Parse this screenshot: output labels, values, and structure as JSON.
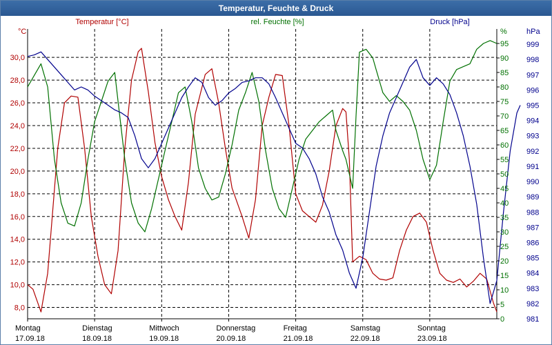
{
  "window": {
    "title": "Temperatur, Feuchte & Druck"
  },
  "colors": {
    "temperature": "#b00000",
    "humidity": "#007000",
    "pressure": "#00008c",
    "grid": "#000000",
    "title_bg": "#2f609b"
  },
  "chart_data": {
    "type": "line",
    "title": "Temperatur, Feuchte & Druck",
    "x_range": [
      0,
      7
    ],
    "days": [
      {
        "weekday": "Montag",
        "date": "17.09.18"
      },
      {
        "weekday": "Dienstag",
        "date": "18.09.18"
      },
      {
        "weekday": "Mittwoch",
        "date": "19.09.18"
      },
      {
        "weekday": "Donnerstag",
        "date": "20.09.18"
      },
      {
        "weekday": "Freitag",
        "date": "21.09.18"
      },
      {
        "weekday": "Samstag",
        "date": "22.09.18"
      },
      {
        "weekday": "Sonntag",
        "date": "23.09.18"
      }
    ],
    "axes": {
      "temperature": {
        "unit": "°C",
        "ylim": [
          7.0,
          32.5
        ],
        "ticks": [
          "30,0",
          "28,0",
          "26,0",
          "24,0",
          "22,0",
          "20,0",
          "18,0",
          "16,0",
          "14,0",
          "12,0",
          "10,0",
          "8,0"
        ],
        "tick_values": [
          30,
          28,
          26,
          24,
          22,
          20,
          18,
          16,
          14,
          12,
          10,
          8
        ]
      },
      "humidity": {
        "unit": "%",
        "ylim": [
          0,
          100
        ],
        "ticks": [
          "95",
          "90",
          "85",
          "80",
          "75",
          "70",
          "65",
          "60",
          "55",
          "50",
          "45",
          "40",
          "35",
          "30",
          "25",
          "20",
          "15",
          "10",
          "5",
          "0"
        ],
        "tick_values": [
          95,
          90,
          85,
          80,
          75,
          70,
          65,
          60,
          55,
          50,
          45,
          40,
          35,
          30,
          25,
          20,
          15,
          10,
          5,
          0
        ]
      },
      "pressure": {
        "unit": "hPa",
        "ylim": [
          981,
          1000
        ],
        "ticks": [
          "999",
          "998",
          "997",
          "996",
          "995",
          "994",
          "993",
          "992",
          "991",
          "990",
          "989",
          "988",
          "987",
          "986",
          "985",
          "984",
          "983",
          "982",
          "981"
        ],
        "tick_values": [
          999,
          998,
          997,
          996,
          995,
          994,
          993,
          992,
          991,
          990,
          989,
          988,
          987,
          986,
          985,
          984,
          983,
          982,
          981
        ]
      }
    },
    "series": [
      {
        "name": "Temperatur [°C]",
        "axis": "temperature",
        "points": [
          [
            0,
            10.0
          ],
          [
            0.08,
            9.6
          ],
          [
            0.2,
            7.6
          ],
          [
            0.3,
            11.0
          ],
          [
            0.45,
            22.0
          ],
          [
            0.55,
            26.0
          ],
          [
            0.65,
            26.6
          ],
          [
            0.75,
            26.5
          ],
          [
            0.85,
            22.0
          ],
          [
            0.95,
            16.0
          ],
          [
            1.05,
            12.5
          ],
          [
            1.15,
            10.0
          ],
          [
            1.25,
            9.2
          ],
          [
            1.35,
            13.0
          ],
          [
            1.45,
            22.0
          ],
          [
            1.55,
            28.0
          ],
          [
            1.65,
            30.5
          ],
          [
            1.7,
            30.8
          ],
          [
            1.8,
            27.0
          ],
          [
            1.9,
            22.5
          ],
          [
            2.0,
            19.5
          ],
          [
            2.1,
            17.5
          ],
          [
            2.2,
            16.0
          ],
          [
            2.3,
            14.8
          ],
          [
            2.4,
            19.0
          ],
          [
            2.5,
            25.0
          ],
          [
            2.65,
            28.5
          ],
          [
            2.75,
            29.0
          ],
          [
            2.85,
            26.0
          ],
          [
            2.95,
            22.0
          ],
          [
            3.05,
            18.5
          ],
          [
            3.2,
            16.0
          ],
          [
            3.3,
            14.1
          ],
          [
            3.4,
            17.5
          ],
          [
            3.5,
            24.0
          ],
          [
            3.6,
            26.5
          ],
          [
            3.7,
            28.5
          ],
          [
            3.8,
            28.4
          ],
          [
            3.9,
            24.0
          ],
          [
            4.0,
            18.0
          ],
          [
            4.1,
            16.5
          ],
          [
            4.2,
            16.0
          ],
          [
            4.3,
            15.5
          ],
          [
            4.4,
            17.0
          ],
          [
            4.5,
            20.0
          ],
          [
            4.6,
            24.0
          ],
          [
            4.7,
            25.5
          ],
          [
            4.75,
            25.2
          ],
          [
            4.8,
            21.0
          ],
          [
            4.85,
            12.0
          ],
          [
            4.95,
            12.5
          ],
          [
            5.05,
            12.2
          ],
          [
            5.15,
            11.0
          ],
          [
            5.25,
            10.5
          ],
          [
            5.35,
            10.4
          ],
          [
            5.45,
            10.6
          ],
          [
            5.55,
            13.0
          ],
          [
            5.65,
            14.8
          ],
          [
            5.75,
            16.0
          ],
          [
            5.85,
            16.3
          ],
          [
            5.95,
            15.5
          ],
          [
            6.05,
            13.0
          ],
          [
            6.15,
            11.0
          ],
          [
            6.25,
            10.4
          ],
          [
            6.35,
            10.2
          ],
          [
            6.45,
            10.5
          ],
          [
            6.55,
            9.8
          ],
          [
            6.65,
            10.3
          ],
          [
            6.75,
            11.0
          ],
          [
            6.85,
            10.5
          ],
          [
            6.95,
            8.4
          ],
          [
            7.0,
            7.6
          ]
        ]
      },
      {
        "name": "rel. Feuchte [%]",
        "axis": "humidity",
        "points": [
          [
            0,
            80.0
          ],
          [
            0.1,
            84.0
          ],
          [
            0.2,
            88.0
          ],
          [
            0.3,
            80.0
          ],
          [
            0.4,
            55.0
          ],
          [
            0.5,
            40.0
          ],
          [
            0.6,
            33.0
          ],
          [
            0.7,
            32.0
          ],
          [
            0.8,
            40.0
          ],
          [
            0.9,
            55.0
          ],
          [
            1.0,
            68.0
          ],
          [
            1.1,
            75.0
          ],
          [
            1.2,
            82.0
          ],
          [
            1.3,
            85.0
          ],
          [
            1.35,
            75.0
          ],
          [
            1.45,
            55.0
          ],
          [
            1.55,
            40.0
          ],
          [
            1.65,
            33.0
          ],
          [
            1.75,
            30.0
          ],
          [
            1.85,
            38.0
          ],
          [
            1.95,
            48.0
          ],
          [
            2.05,
            58.0
          ],
          [
            2.15,
            68.0
          ],
          [
            2.25,
            78.0
          ],
          [
            2.35,
            80.0
          ],
          [
            2.45,
            68.0
          ],
          [
            2.55,
            52.0
          ],
          [
            2.65,
            45.0
          ],
          [
            2.75,
            41.0
          ],
          [
            2.85,
            42.0
          ],
          [
            2.95,
            50.0
          ],
          [
            3.05,
            60.0
          ],
          [
            3.15,
            72.0
          ],
          [
            3.25,
            78.0
          ],
          [
            3.35,
            85.0
          ],
          [
            3.45,
            75.0
          ],
          [
            3.55,
            58.0
          ],
          [
            3.65,
            45.0
          ],
          [
            3.75,
            38.0
          ],
          [
            3.85,
            35.0
          ],
          [
            3.95,
            45.0
          ],
          [
            4.05,
            55.0
          ],
          [
            4.15,
            62.0
          ],
          [
            4.25,
            65.0
          ],
          [
            4.35,
            68.0
          ],
          [
            4.45,
            70.0
          ],
          [
            4.55,
            72.0
          ],
          [
            4.6,
            65.0
          ],
          [
            4.7,
            58.0
          ],
          [
            4.75,
            55.0
          ],
          [
            4.85,
            45.0
          ],
          [
            4.9,
            70.0
          ],
          [
            4.95,
            92.0
          ],
          [
            5.05,
            93.0
          ],
          [
            5.15,
            90.0
          ],
          [
            5.2,
            86.0
          ],
          [
            5.3,
            78.0
          ],
          [
            5.4,
            75.0
          ],
          [
            5.5,
            77.0
          ],
          [
            5.6,
            75.0
          ],
          [
            5.7,
            72.0
          ],
          [
            5.8,
            65.0
          ],
          [
            5.9,
            55.0
          ],
          [
            6.0,
            48.0
          ],
          [
            6.1,
            53.0
          ],
          [
            6.2,
            68.0
          ],
          [
            6.3,
            82.0
          ],
          [
            6.4,
            86.0
          ],
          [
            6.5,
            87.0
          ],
          [
            6.6,
            88.0
          ],
          [
            6.7,
            93.0
          ],
          [
            6.8,
            95.0
          ],
          [
            6.9,
            96.0
          ],
          [
            7.0,
            95.0
          ]
        ]
      },
      {
        "name": "Druck [hPa]",
        "axis": "pressure",
        "points": [
          [
            0,
            998.2
          ],
          [
            0.1,
            998.3
          ],
          [
            0.2,
            998.5
          ],
          [
            0.3,
            998.0
          ],
          [
            0.4,
            997.5
          ],
          [
            0.5,
            997.0
          ],
          [
            0.6,
            996.5
          ],
          [
            0.7,
            996.0
          ],
          [
            0.8,
            996.2
          ],
          [
            0.9,
            996.0
          ],
          [
            1.0,
            995.6
          ],
          [
            1.1,
            995.3
          ],
          [
            1.2,
            995.0
          ],
          [
            1.3,
            994.7
          ],
          [
            1.4,
            994.5
          ],
          [
            1.5,
            994.2
          ],
          [
            1.6,
            993.0
          ],
          [
            1.7,
            991.5
          ],
          [
            1.8,
            990.9
          ],
          [
            1.9,
            991.5
          ],
          [
            2.0,
            992.5
          ],
          [
            2.1,
            993.5
          ],
          [
            2.2,
            994.5
          ],
          [
            2.3,
            995.5
          ],
          [
            2.4,
            996.2
          ],
          [
            2.5,
            996.8
          ],
          [
            2.6,
            996.5
          ],
          [
            2.7,
            995.5
          ],
          [
            2.8,
            995.0
          ],
          [
            2.9,
            995.3
          ],
          [
            3.0,
            995.8
          ],
          [
            3.1,
            996.1
          ],
          [
            3.2,
            996.5
          ],
          [
            3.3,
            996.6
          ],
          [
            3.4,
            996.8
          ],
          [
            3.5,
            996.8
          ],
          [
            3.6,
            996.4
          ],
          [
            3.7,
            995.5
          ],
          [
            3.8,
            994.5
          ],
          [
            3.9,
            993.5
          ],
          [
            4.0,
            992.5
          ],
          [
            4.1,
            992.2
          ],
          [
            4.2,
            991.5
          ],
          [
            4.3,
            990.5
          ],
          [
            4.4,
            989.0
          ],
          [
            4.5,
            988.0
          ],
          [
            4.6,
            986.5
          ],
          [
            4.7,
            985.5
          ],
          [
            4.8,
            984.0
          ],
          [
            4.9,
            983.0
          ],
          [
            5.0,
            985.0
          ],
          [
            5.1,
            988.0
          ],
          [
            5.2,
            991.0
          ],
          [
            5.3,
            993.0
          ],
          [
            5.4,
            994.5
          ],
          [
            5.5,
            995.5
          ],
          [
            5.6,
            996.5
          ],
          [
            5.7,
            997.5
          ],
          [
            5.8,
            998.0
          ],
          [
            5.9,
            996.8
          ],
          [
            6.0,
            996.3
          ],
          [
            6.1,
            996.8
          ],
          [
            6.2,
            996.4
          ],
          [
            6.3,
            995.7
          ],
          [
            6.4,
            994.5
          ],
          [
            6.5,
            993.0
          ],
          [
            6.6,
            991.0
          ],
          [
            6.7,
            988.5
          ],
          [
            6.8,
            985.0
          ],
          [
            6.9,
            982.0
          ],
          [
            7.0,
            983.5
          ],
          [
            7.1,
            988.0
          ],
          [
            7.2,
            992.0
          ],
          [
            7.3,
            994.5
          ],
          [
            7.35,
            995.0
          ]
        ]
      }
    ],
    "grid": true,
    "legend": "top"
  }
}
